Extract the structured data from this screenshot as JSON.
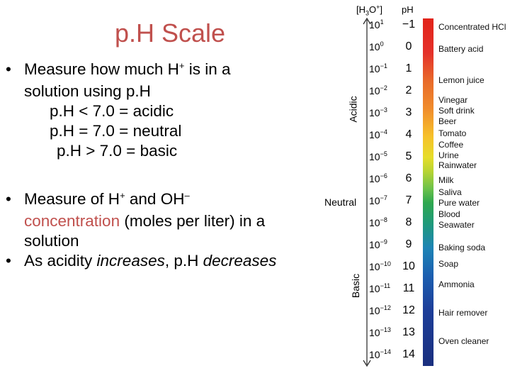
{
  "slide": {
    "title": "p.H Scale",
    "bullet_symbol": "•",
    "bullet1_a": "Measure how much H",
    "bullet1_sup": "+",
    "bullet1_b": " is in a",
    "bullet1_c": "solution using p.H",
    "line_acidic": "p.H < 7.0 = acidic",
    "line_neutral": "p.H = 7.0 = neutral",
    "line_basic": "p.H > 7.0 = basic",
    "bullet2_a": "Measure of H",
    "bullet2_sup1": "+",
    "bullet2_b": " and OH",
    "bullet2_sup2": "–",
    "bullet2_red": "concentration",
    "bullet2_c": " (moles per liter) in a",
    "bullet2_d": "solution",
    "bullet3_a": "As acidity ",
    "bullet3_em1": "increases",
    "bullet3_b": ", p.H ",
    "bullet3_em2": "decreases"
  },
  "scale": {
    "col_conc_a": "[H",
    "col_conc_sub": "3",
    "col_conc_b": "O",
    "col_conc_sup": "+",
    "col_conc_c": "]",
    "col_ph": "pH",
    "label_acidic": "Acidic",
    "label_neutral": "Neutral",
    "label_basic": "Basic",
    "conc_base": "10",
    "rows": [
      {
        "exp": "1",
        "ph": "−1"
      },
      {
        "exp": "0",
        "ph": "0"
      },
      {
        "exp": "−1",
        "ph": "1"
      },
      {
        "exp": "−2",
        "ph": "2"
      },
      {
        "exp": "−3",
        "ph": "3"
      },
      {
        "exp": "−4",
        "ph": "4"
      },
      {
        "exp": "−5",
        "ph": "5"
      },
      {
        "exp": "−6",
        "ph": "6"
      },
      {
        "exp": "−7",
        "ph": "7"
      },
      {
        "exp": "−8",
        "ph": "8"
      },
      {
        "exp": "−9",
        "ph": "9"
      },
      {
        "exp": "−10",
        "ph": "10"
      },
      {
        "exp": "−11",
        "ph": "11"
      },
      {
        "exp": "−12",
        "ph": "12"
      },
      {
        "exp": "−13",
        "ph": "13"
      },
      {
        "exp": "−14",
        "ph": "14"
      }
    ],
    "substances": [
      "Concentrated HCl",
      "Battery acid",
      "Lemon juice",
      "Vinegar",
      "Soft drink",
      "Beer",
      "Tomato",
      "Coffee",
      "Urine",
      "Rainwater",
      "Milk",
      "Saliva",
      "Pure water",
      "Blood",
      "Seawater",
      "Baking soda",
      "Soap",
      "Ammonia",
      "Hair remover",
      "Oven cleaner"
    ]
  }
}
